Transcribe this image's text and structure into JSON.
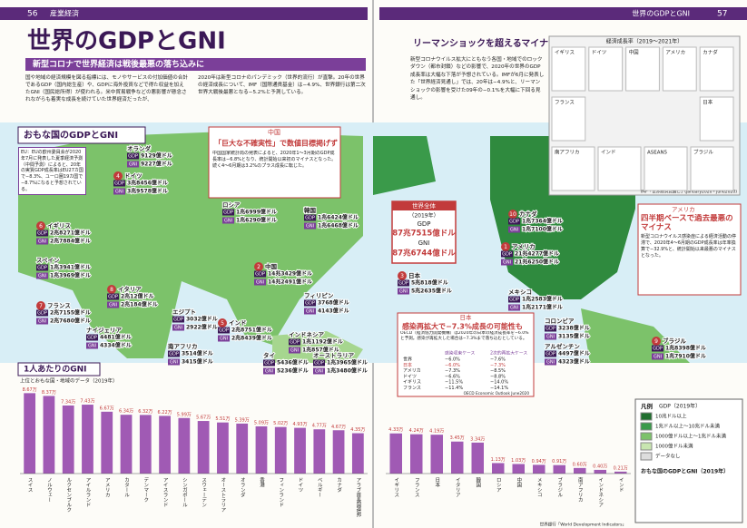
{
  "pages": {
    "left_number": "56",
    "left_section": "産業経済",
    "right_section": "世界のGDPとGNI",
    "right_number": "57"
  },
  "header": {
    "title": "世界のGDPとGNI",
    "subtitle": "新型コロナで世界経済は戦後最悪の落ち込みに",
    "intro_1": "国や地域の経済規模を図る指標には、モノやサービスの付加価値の合計であるGDP（国内総生産）や、GDPに海外投資などで得た収益を加えたGNI（国民総所得）が使われる。米中貿易戦争などの悪影響が懸念されながらも着実な成長を続けていた世界経済だったが、",
    "intro_2": "2020年は新型コロナのパンデミック（世界的流行）が直撃。20年の世界の経済成長について、IMF（国際通貨基金）は−4.9%、世界銀行は第二次世界大戦後最悪となる−5.2%と予測している。"
  },
  "map": {
    "heading": "おもな国のGDPとGNI",
    "gdp_tag": "GDP",
    "gni_tag": "GNI",
    "eu_note": "EU：EUの欧州委員会が2020年7月に発表した夏季経済予測（中間予測）によると、20年の実質GDP成長率はEU27カ国で−8.3%、ユーロ圏19カ国で−8.7%になると予想されている。",
    "china_box": {
      "label": "中国",
      "headline": "「巨大な不確実性」で数値目標掲げず",
      "text": "中国国家統計局の発表によると、2020年1〜3月期のGDP成長率は−6.8%となり、統計開始以来初のマイナスとなった。続く4〜6月期は3.2%のプラス成長に転じた。"
    },
    "world": {
      "label": "世界全体",
      "year": "（2019年）",
      "gdp_tag": "GDP",
      "gdp": "87兆7515億ドル",
      "gni_tag": "GNI",
      "gni": "87兆6744億ドル"
    },
    "countries": [
      {
        "name": "オランダ",
        "gdp": "9129億ドル",
        "gni": "9227億ドル"
      },
      {
        "rank": "4",
        "name": "ドイツ",
        "gdp": "3兆8456億ドル",
        "gni": "3兆9578億ドル"
      },
      {
        "rank": "6",
        "name": "イギリス",
        "gdp": "2兆8271億ドル",
        "gni": "2兆7884億ドル"
      },
      {
        "name": "スペイン",
        "gdp": "1兆3941億ドル",
        "gni": "1兆3969億ドル"
      },
      {
        "rank": "8",
        "name": "イタリア",
        "gdp": "2兆12億ドル",
        "gni": "2兆184億ドル"
      },
      {
        "rank": "7",
        "name": "フランス",
        "gdp": "2兆7155億ドル",
        "gni": "2兆7680億ドル"
      },
      {
        "name": "ナイジェリア",
        "gdp": "4481億ドル",
        "gni": "4334億ドル"
      },
      {
        "name": "南アフリカ",
        "gdp": "3514億ドル",
        "gni": "3415億ドル"
      },
      {
        "name": "エジプト",
        "gdp": "3032億ドル",
        "gni": "2922億ドル"
      },
      {
        "rank": "5",
        "name": "インド",
        "gdp": "2兆8751億ドル",
        "gni": "2兆8439億ドル"
      },
      {
        "name": "タイ",
        "gdp": "5436億ドル",
        "gni": "5236億ドル"
      },
      {
        "name": "インドネシア",
        "gdp": "1兆1192億ドル",
        "gni": "1兆857億ドル"
      },
      {
        "name": "フィリピン",
        "gdp": "3768億ドル",
        "gni": "4143億ドル"
      },
      {
        "rank": "2",
        "name": "中国",
        "gdp": "14兆3429億ドル",
        "gni": "14兆2491億ドル"
      },
      {
        "name": "ロシア",
        "gdp": "1兆6999億ドル",
        "gni": "1兆6290億ドル"
      },
      {
        "name": "韓国",
        "gdp": "1兆6424億ドル",
        "gni": "1兆6468億ドル"
      },
      {
        "name": "オーストラリア",
        "gdp": "1兆3965億ドル",
        "gni": "1兆3480億ドル"
      },
      {
        "rank": "3",
        "name": "日本",
        "gdp": "5兆818億ドル",
        "gni": "5兆2635億ドル"
      },
      {
        "rank": "10",
        "name": "カナダ",
        "gdp": "1兆7364億ドル",
        "gni": "1兆7100億ドル"
      },
      {
        "rank": "1",
        "name": "アメリカ",
        "gdp": "21兆4277億ドル",
        "gni": "21兆6250億ドル"
      },
      {
        "name": "メキシコ",
        "gdp": "1兆2583億ドル",
        "gni": "1兆2171億ドル"
      },
      {
        "name": "コロンビア",
        "gdp": "3238億ドル",
        "gni": "3135億ドル"
      },
      {
        "name": "アルゼンチン",
        "gdp": "4497億ドル",
        "gni": "4323億ドル"
      },
      {
        "rank": "9",
        "name": "ブラジル",
        "gdp": "1兆8398億ドル",
        "gni": "1兆7910億ドル"
      }
    ]
  },
  "right_top": {
    "heading": "リーマンショックを超えるマイナス成長を予想",
    "text": "新型コロナウイルス拡大にともなう各国・地域でのロックダウン（都市封鎖）などの影響で、2020年の世界のGDP成長率は大幅な下落が予想されている。IMFが6月に発表した「世界経済見通し」では、20年は−4.9%と、リーマンショックの影響を受けた09年の−0.1%を大幅に下回る見通し。",
    "growth_title": "経済成長率（2019〜2021年）",
    "growth_countries": [
      "イギリス",
      "ドイツ",
      "中国",
      "アメリカ",
      "カナダ",
      "フランス",
      "日本",
      "南アフリカ",
      "インド",
      "ASEAN5",
      "ブラジル"
    ],
    "source": "IMF「世界経済見通し」(January2020・June2020)"
  },
  "usa_box": {
    "label": "アメリカ",
    "headline": "四半期ベースで過去最悪のマイナス",
    "text": "新型コロナウイルス感染症による経済活動の停滞で、2020年4〜6月期のGDP成長率は年率換算で−32.9%と、統計開始以来最悪のマイナスとなった。"
  },
  "japan_box": {
    "label": "日本",
    "headline": "感染再拡大で−7.3%成長の可能性も",
    "text": "OECD（経済協力開発機構）は2020年の日本の経済成長率を−6.0%と予測。感染が再拡大した場合は−7.3%まで落ち込むとしている。",
    "table": {
      "header": [
        "",
        "感染収束ケース",
        "2次的再拡大ケース"
      ],
      "rows": [
        [
          "世界",
          "−6.0%",
          "−7.6%"
        ],
        [
          "日本",
          "−6.0%",
          "−7.3%"
        ],
        [
          "アメリカ",
          "−7.3%",
          "−8.5%"
        ],
        [
          "ドイツ",
          "−6.6%",
          "−8.8%"
        ],
        [
          "イギリス",
          "−11.5%",
          "−14.0%"
        ],
        [
          "フランス",
          "−11.4%",
          "−14.1%"
        ]
      ]
    },
    "source": "OECD Economic Outlook June2020"
  },
  "legend": {
    "title": "凡例",
    "gdp_legend": "GDP（2019年）",
    "items": [
      "10兆ドル以上",
      "1兆ドル以上〜10兆ドル未満",
      "1000億ドル以上〜1兆ドル未満",
      "1000億ドル未満",
      "データなし"
    ],
    "label_title": "おもな国のGDPとGNI（2019年）"
  },
  "chart_source": "世界銀行「World Development Indicators」",
  "chart_data": [
    {
      "type": "bar",
      "title": "1人あたりのGNI",
      "subtitle": "上位とおもな国・地域のデータ（2019年）",
      "color": "#a05ab4",
      "categories": [
        "スイス",
        "ノルウェー",
        "ルクセンブルク",
        "アイルランド",
        "アメリカ",
        "カタール",
        "デンマーク",
        "アイスランド",
        "シンガポール",
        "スウェーデン",
        "オーストラリア",
        "オランダ",
        "香港",
        "フィンランド",
        "ドイツ",
        "ベルギー",
        "カナダ",
        "アラブ首長国連邦"
      ],
      "values": [
        8.67,
        8.37,
        7.34,
        7.43,
        6.67,
        6.34,
        6.32,
        6.22,
        5.99,
        5.67,
        5.51,
        5.39,
        5.09,
        5.02,
        4.93,
        4.77,
        4.67,
        4.35
      ],
      "value_labels": [
        "8.67万",
        "8.37万",
        "7.34万",
        "7.43万",
        "6.67万",
        "6.34万",
        "6.32万",
        "6.22万",
        "5.99万",
        "5.67万",
        "5.51万",
        "5.39万",
        "5.09万",
        "5.02万",
        "4.93万",
        "4.77万",
        "4.67万",
        "4.35万"
      ],
      "ylim": [
        0,
        9
      ]
    },
    {
      "type": "bar",
      "color": "#a05ab4",
      "categories": [
        "イギリス",
        "フランス",
        "日本",
        "イタリア",
        "韓国",
        "ロシア",
        "中国",
        "メキシコ",
        "ブラジル",
        "南アフリカ",
        "インドネシア",
        "インド"
      ],
      "values": [
        4.33,
        4.24,
        4.19,
        3.45,
        3.34,
        1.13,
        1.03,
        0.94,
        0.91,
        0.6,
        0.4,
        0.21
      ],
      "value_labels": [
        "4.33万",
        "4.24万",
        "4.19万",
        "3.45万",
        "3.34万",
        "1.13万",
        "1.03万",
        "0.94万",
        "0.91万",
        "0.60万",
        "0.40万",
        "0.21万"
      ],
      "ylim": [
        0,
        9
      ]
    }
  ]
}
